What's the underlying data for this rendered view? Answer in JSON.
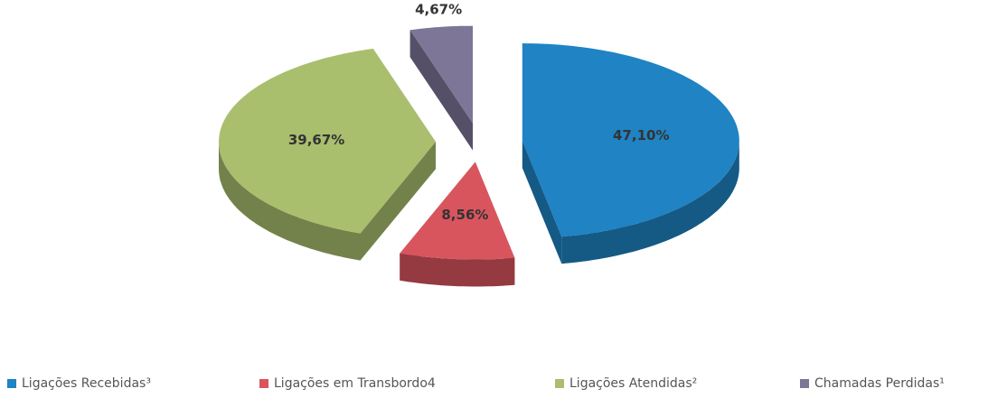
{
  "chart_data": {
    "type": "pie",
    "categories": [
      "Ligações Recebidas³",
      "Ligações em Transbordo4",
      "Ligações Atendidas²",
      "Chamadas Perdidas¹"
    ],
    "values": [
      47.1,
      8.56,
      39.67,
      4.67
    ],
    "value_labels": [
      "47,10%",
      "8,56%",
      "39,67%",
      "4,67%"
    ],
    "colors": [
      "#1f83c4",
      "#d9555e",
      "#a9bf6e",
      "#7d7697"
    ],
    "legend": "bottom"
  }
}
